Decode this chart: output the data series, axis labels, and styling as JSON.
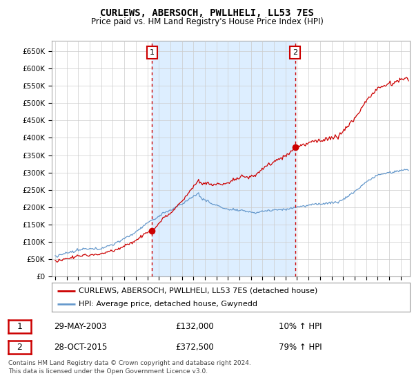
{
  "title": "CURLEWS, ABERSOCH, PWLLHELI, LL53 7ES",
  "subtitle": "Price paid vs. HM Land Registry's House Price Index (HPI)",
  "ylim": [
    0,
    680000
  ],
  "yticks": [
    0,
    50000,
    100000,
    150000,
    200000,
    250000,
    300000,
    350000,
    400000,
    450000,
    500000,
    550000,
    600000,
    650000
  ],
  "ytick_labels": [
    "£0",
    "£50K",
    "£100K",
    "£150K",
    "£200K",
    "£250K",
    "£300K",
    "£350K",
    "£400K",
    "£450K",
    "£500K",
    "£550K",
    "£600K",
    "£650K"
  ],
  "sale1_date": 2003.41,
  "sale1_price": 132000,
  "sale1_label": "1",
  "sale2_date": 2015.83,
  "sale2_price": 372500,
  "sale2_label": "2",
  "sale_color": "#cc0000",
  "hpi_color": "#6699cc",
  "shade_color": "#ddeeff",
  "vline_color": "#cc0000",
  "legend_sale_label": "CURLEWS, ABERSOCH, PWLLHELI, LL53 7ES (detached house)",
  "legend_hpi_label": "HPI: Average price, detached house, Gwynedd",
  "table_row1_num": "1",
  "table_row1_date": "29-MAY-2003",
  "table_row1_price": "£132,000",
  "table_row1_pct": "10% ↑ HPI",
  "table_row2_num": "2",
  "table_row2_date": "28-OCT-2015",
  "table_row2_price": "£372,500",
  "table_row2_pct": "79% ↑ HPI",
  "footer": "Contains HM Land Registry data © Crown copyright and database right 2024.\nThis data is licensed under the Open Government Licence v3.0.",
  "background_color": "#ffffff",
  "grid_color": "#cccccc",
  "xlim_left": 1994.7,
  "xlim_right": 2025.8
}
